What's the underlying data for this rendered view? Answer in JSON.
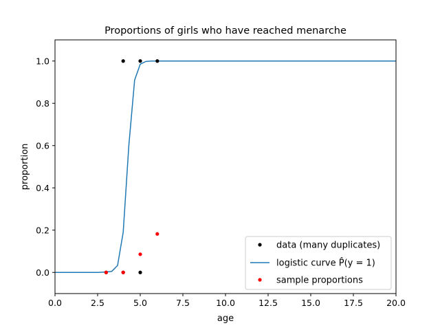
{
  "chart_data": {
    "type": "scatter",
    "title": "Proportions of girls who have reached menarche",
    "xlabel": "age",
    "ylabel": "proportion",
    "xlim": [
      0,
      20
    ],
    "ylim": [
      -0.1,
      1.1
    ],
    "xticks": [
      0,
      2.5,
      5,
      7.5,
      10,
      12.5,
      15,
      17.5,
      20
    ],
    "xtick_labels": [
      "0.0",
      "2.5",
      "5.0",
      "7.5",
      "10.0",
      "12.5",
      "15.0",
      "17.5",
      "20.0"
    ],
    "yticks": [
      0,
      0.2,
      0.4,
      0.6,
      0.8,
      1.0
    ],
    "ytick_labels": [
      "0.0",
      "0.2",
      "0.4",
      "0.6",
      "0.8",
      "1.0"
    ],
    "grid": false,
    "legend_position": "lower-right",
    "series": [
      {
        "name": "data (many duplicates)",
        "kind": "scatter",
        "color": "#000000",
        "x": [
          3,
          4,
          5,
          4,
          5,
          6
        ],
        "y": [
          0,
          0,
          0,
          1,
          1,
          1
        ]
      },
      {
        "name": "logistic curve $\\hat{P}(y=1)$",
        "display_name": "logistic curve P̂(y = 1)",
        "kind": "line",
        "color": "#1f77b4",
        "x": [
          0,
          0.5,
          1,
          1.5,
          2,
          2.5,
          3,
          3.33,
          3.67,
          4,
          4.33,
          4.67,
          5,
          5.33,
          5.67,
          6,
          6.5,
          7,
          8,
          10,
          12,
          14,
          16,
          18,
          20
        ],
        "y": [
          0,
          0,
          0,
          0,
          0,
          0,
          0.002,
          0.005,
          0.033,
          0.19,
          0.6,
          0.91,
          0.985,
          0.998,
          1,
          1,
          1,
          1,
          1,
          1,
          1,
          1,
          1,
          1,
          1
        ]
      },
      {
        "name": "sample proportions",
        "kind": "scatter",
        "color": "#ff0000",
        "x": [
          3,
          4,
          5,
          6
        ],
        "y": [
          0,
          0,
          0.086,
          0.182
        ]
      }
    ]
  }
}
